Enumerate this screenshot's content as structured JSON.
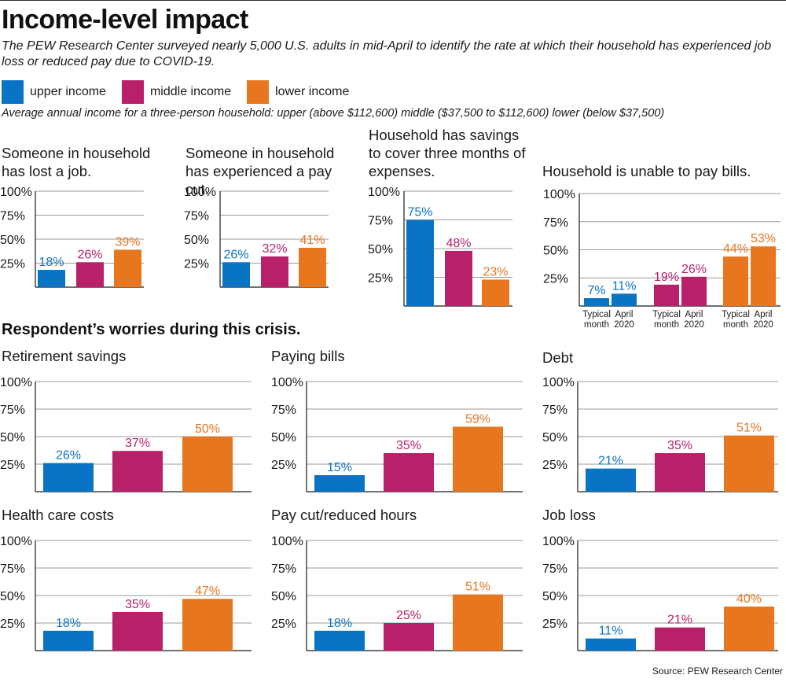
{
  "header": {
    "title": "Income-level impact",
    "subtitle": "The PEW Research Center surveyed nearly 5,000 U.S. adults in mid-April to identify the rate at which their household has experienced job loss or reduced pay due to COVID-19.",
    "income_note": "Average annual income for a three-person household: upper (above $112,600) middle ($37,500 to $112,600) lower (below $37,500)"
  },
  "legend": [
    {
      "label": "upper income",
      "color": "#0a74c4"
    },
    {
      "label": "middle income",
      "color": "#b8206a"
    },
    {
      "label": "lower income",
      "color": "#e8761f"
    }
  ],
  "section_worries": "Respondent’s worries during this crisis.",
  "source": "Source:  PEW Research Center",
  "colors": {
    "upper": "#0a74c4",
    "middle": "#b8206a",
    "lower": "#e8761f",
    "axis": "#1a1a1a",
    "grid": "#9a9a9a"
  },
  "chart_data": [
    {
      "id": "lost-job",
      "type": "bar",
      "title": "Someone in household has lost a job.",
      "categories": [
        "upper income",
        "middle income",
        "lower income"
      ],
      "values": [
        18,
        26,
        39
      ],
      "labels": [
        "18%",
        "26%",
        "39%"
      ],
      "yticks": [
        "100%",
        "75%",
        "50%",
        "25%"
      ],
      "ylim": [
        0,
        100
      ],
      "grid": true
    },
    {
      "id": "pay-cut",
      "type": "bar",
      "title": "Someone in household has experienced a pay cut.",
      "categories": [
        "upper income",
        "middle income",
        "lower income"
      ],
      "values": [
        26,
        32,
        41
      ],
      "labels": [
        "26%",
        "32%",
        "41%"
      ],
      "yticks": [
        "100%",
        "75%",
        "50%",
        "25%"
      ],
      "ylim": [
        0,
        100
      ],
      "grid": true
    },
    {
      "id": "savings",
      "type": "bar",
      "title": "Household has savings to cover three months of expenses.",
      "categories": [
        "upper income",
        "middle income",
        "lower income"
      ],
      "values": [
        75,
        48,
        23
      ],
      "labels": [
        "75%",
        "48%",
        "23%"
      ],
      "yticks": [
        "100%",
        "75%",
        "50%",
        "25%"
      ],
      "ylim": [
        0,
        100
      ],
      "grid": true
    },
    {
      "id": "unable-bills",
      "type": "bar",
      "title": "Household is unable to pay bills.",
      "groups": [
        "upper income",
        "middle income",
        "lower income"
      ],
      "periods": [
        "Typical month",
        "April 2020"
      ],
      "values": [
        [
          7,
          11
        ],
        [
          19,
          26
        ],
        [
          44,
          53
        ]
      ],
      "labels": [
        [
          "7%",
          "11%"
        ],
        [
          "19%",
          "26%"
        ],
        [
          "44%",
          "53%"
        ]
      ],
      "period_labels": [
        [
          "Typical",
          "month"
        ],
        [
          "April",
          "2020"
        ]
      ],
      "yticks": [
        "100%",
        "75%",
        "50%",
        "25%"
      ],
      "ylim": [
        0,
        100
      ],
      "grid": true
    },
    {
      "id": "retirement",
      "type": "bar",
      "title": "Retirement savings",
      "categories": [
        "upper income",
        "middle income",
        "lower income"
      ],
      "values": [
        26,
        37,
        50
      ],
      "labels": [
        "26%",
        "37%",
        "50%"
      ],
      "yticks": [
        "100%",
        "75%",
        "50%",
        "25%"
      ],
      "ylim": [
        0,
        100
      ],
      "grid": true
    },
    {
      "id": "paying-bills",
      "type": "bar",
      "title": "Paying bills",
      "categories": [
        "upper income",
        "middle income",
        "lower income"
      ],
      "values": [
        15,
        35,
        59
      ],
      "labels": [
        "15%",
        "35%",
        "59%"
      ],
      "yticks": [
        "100%",
        "75%",
        "50%",
        "25%"
      ],
      "ylim": [
        0,
        100
      ],
      "grid": true
    },
    {
      "id": "debt",
      "type": "bar",
      "title": "Debt",
      "categories": [
        "upper income",
        "middle income",
        "lower income"
      ],
      "values": [
        21,
        35,
        51
      ],
      "labels": [
        "21%",
        "35%",
        "51%"
      ],
      "yticks": [
        "100%",
        "75%",
        "50%",
        "25%"
      ],
      "ylim": [
        0,
        100
      ],
      "grid": true
    },
    {
      "id": "health-care",
      "type": "bar",
      "title": "Health care costs",
      "categories": [
        "upper income",
        "middle income",
        "lower income"
      ],
      "values": [
        18,
        35,
        47
      ],
      "labels": [
        "18%",
        "35%",
        "47%"
      ],
      "yticks": [
        "100%",
        "75%",
        "50%",
        "25%"
      ],
      "ylim": [
        0,
        100
      ],
      "grid": true
    },
    {
      "id": "pay-cut-hours",
      "type": "bar",
      "title": "Pay cut/reduced hours",
      "categories": [
        "upper income",
        "middle income",
        "lower income"
      ],
      "values": [
        18,
        25,
        51
      ],
      "labels": [
        "18%",
        "25%",
        "51%"
      ],
      "yticks": [
        "100%",
        "75%",
        "50%",
        "25%"
      ],
      "ylim": [
        0,
        100
      ],
      "grid": true
    },
    {
      "id": "job-loss",
      "type": "bar",
      "title": "Job loss",
      "categories": [
        "upper income",
        "middle income",
        "lower income"
      ],
      "values": [
        11,
        21,
        40
      ],
      "labels": [
        "11%",
        "21%",
        "40%"
      ],
      "yticks": [
        "100%",
        "75%",
        "50%",
        "25%"
      ],
      "ylim": [
        0,
        100
      ],
      "grid": true
    }
  ]
}
